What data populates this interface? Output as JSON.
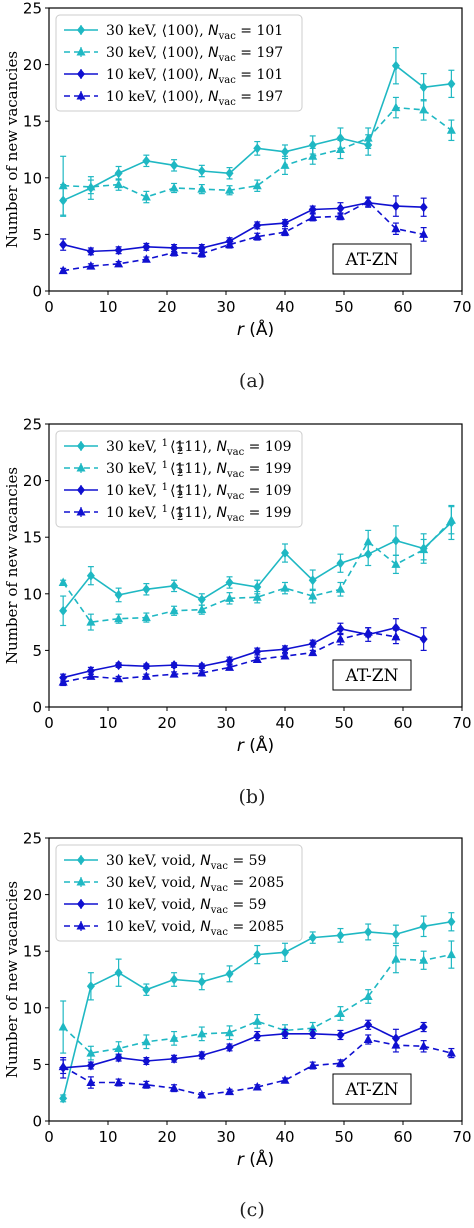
{
  "colors": {
    "cyan": "#1fb8c3",
    "blue": "#1010d0"
  },
  "chart_data": [
    {
      "type": "line",
      "caption": "(a)",
      "annotation": "AT-ZN",
      "xlabel": "r (Å)",
      "ylabel": "Number of new vacancies",
      "xlim": [
        0,
        70
      ],
      "ylim": [
        0,
        25
      ],
      "xticks": [
        0,
        10,
        20,
        30,
        40,
        50,
        60,
        70
      ],
      "yticks": [
        0,
        5,
        10,
        15,
        20,
        25
      ],
      "legend_position": "top-left",
      "series": [
        {
          "energy": "30 keV",
          "defect": "⟨100⟩",
          "nvac_label": "N",
          "nvac_sub": "vac",
          "nvac": "= 101",
          "color": "cyan",
          "dashed": false,
          "marker": "diamond",
          "x": [
            2.4,
            7.1,
            11.8,
            16.5,
            21.2,
            25.9,
            30.6,
            35.3,
            40.0,
            44.7,
            49.4,
            54.1,
            58.8,
            63.5,
            68.2
          ],
          "y": [
            8.0,
            9.1,
            10.4,
            11.5,
            11.1,
            10.6,
            10.4,
            12.6,
            12.3,
            12.9,
            13.5,
            12.9,
            19.9,
            18.0,
            18.3
          ],
          "err": [
            1.4,
            1.0,
            0.6,
            0.5,
            0.5,
            0.5,
            0.5,
            0.6,
            0.6,
            0.8,
            0.9,
            0.9,
            1.6,
            1.2,
            1.2
          ]
        },
        {
          "energy": "30 keV",
          "defect": "⟨100⟩",
          "nvac_label": "N",
          "nvac_sub": "vac",
          "nvac": "= 197",
          "color": "cyan",
          "dashed": true,
          "marker": "tri",
          "x": [
            2.4,
            7.1,
            11.8,
            16.5,
            21.2,
            25.9,
            30.6,
            35.3,
            40.0,
            44.7,
            49.4,
            54.1,
            58.8,
            63.5,
            68.2
          ],
          "y": [
            9.3,
            9.2,
            9.4,
            8.3,
            9.1,
            9.0,
            8.9,
            9.3,
            11.1,
            11.9,
            12.5,
            13.5,
            16.2,
            16.0,
            14.2
          ],
          "err": [
            2.6,
            0.6,
            0.5,
            0.5,
            0.4,
            0.4,
            0.4,
            0.5,
            0.8,
            0.7,
            0.8,
            0.9,
            0.9,
            0.9,
            0.9
          ]
        },
        {
          "energy": "10 keV",
          "defect": "⟨100⟩",
          "nvac_label": "N",
          "nvac_sub": "vac",
          "nvac": "= 101",
          "color": "blue",
          "dashed": false,
          "marker": "diamond",
          "x": [
            2.4,
            7.1,
            11.8,
            16.5,
            21.2,
            25.9,
            30.6,
            35.3,
            40.0,
            44.7,
            49.4,
            54.1,
            58.8,
            63.5
          ],
          "y": [
            4.1,
            3.5,
            3.6,
            3.9,
            3.8,
            3.8,
            4.4,
            5.8,
            6.0,
            7.2,
            7.3,
            7.8,
            7.5,
            7.4
          ],
          "err": [
            0.5,
            0.3,
            0.3,
            0.3,
            0.3,
            0.3,
            0.3,
            0.3,
            0.3,
            0.3,
            0.5,
            0.4,
            0.9,
            0.8
          ]
        },
        {
          "energy": "10 keV",
          "defect": "⟨100⟩",
          "nvac_label": "N",
          "nvac_sub": "vac",
          "nvac": "= 197",
          "color": "blue",
          "dashed": true,
          "marker": "tri",
          "x": [
            2.4,
            7.1,
            11.8,
            16.5,
            21.2,
            25.9,
            30.6,
            35.3,
            40.0,
            44.7,
            49.4,
            54.1,
            58.8,
            63.5
          ],
          "y": [
            1.8,
            2.2,
            2.4,
            2.8,
            3.4,
            3.3,
            4.1,
            4.8,
            5.2,
            6.5,
            6.6,
            7.9,
            5.5,
            5.0
          ],
          "err": [
            0.2,
            0.2,
            0.2,
            0.2,
            0.3,
            0.3,
            0.3,
            0.3,
            0.3,
            0.3,
            0.3,
            0.4,
            0.5,
            0.6
          ]
        }
      ]
    },
    {
      "type": "line",
      "caption": "(b)",
      "annotation": "AT-ZN",
      "xlabel": "r (Å)",
      "ylabel": "Number of new vacancies",
      "xlim": [
        0,
        70
      ],
      "ylim": [
        0,
        25
      ],
      "xticks": [
        0,
        10,
        20,
        30,
        40,
        50,
        60,
        70
      ],
      "yticks": [
        0,
        5,
        10,
        15,
        20,
        25
      ],
      "legend_position": "top-left",
      "series": [
        {
          "energy": "30 keV",
          "defect_frac": [
            "1",
            "2"
          ],
          "defect": "⟨111⟩",
          "nvac_label": "N",
          "nvac_sub": "vac",
          "nvac": "= 109",
          "color": "cyan",
          "dashed": false,
          "marker": "diamond",
          "x": [
            2.4,
            7.1,
            11.8,
            16.5,
            21.2,
            25.9,
            30.6,
            35.3,
            40.0,
            44.7,
            49.4,
            54.1,
            58.8,
            63.5,
            68.2
          ],
          "y": [
            8.5,
            11.6,
            9.9,
            10.4,
            10.7,
            9.5,
            11.0,
            10.6,
            13.6,
            11.2,
            12.7,
            13.5,
            14.7,
            14.0,
            16.3
          ],
          "err": [
            1.3,
            0.8,
            0.6,
            0.5,
            0.5,
            0.5,
            0.5,
            0.6,
            0.8,
            0.9,
            0.8,
            1.0,
            1.3,
            1.3,
            1.5
          ]
        },
        {
          "energy": "30 keV",
          "defect_frac": [
            "1",
            "2"
          ],
          "defect": "⟨111⟩",
          "nvac_label": "N",
          "nvac_sub": "vac",
          "nvac": "= 199",
          "color": "cyan",
          "dashed": true,
          "marker": "tri",
          "x": [
            2.4,
            7.1,
            11.8,
            16.5,
            21.2,
            25.9,
            30.6,
            35.3,
            40.0,
            44.7,
            49.4,
            54.1,
            58.8,
            63.5,
            68.2
          ],
          "y": [
            11.0,
            7.5,
            7.8,
            7.9,
            8.5,
            8.6,
            9.6,
            9.7,
            10.5,
            9.8,
            10.4,
            14.6,
            12.6,
            13.9,
            16.5
          ],
          "err": [
            0.2,
            0.7,
            0.4,
            0.4,
            0.4,
            0.4,
            0.5,
            0.5,
            0.5,
            0.6,
            0.6,
            1.0,
            0.8,
            0.9,
            1.2
          ]
        },
        {
          "energy": "10 keV",
          "defect_frac": [
            "1",
            "2"
          ],
          "defect": "⟨111⟩",
          "nvac_label": "N",
          "nvac_sub": "vac",
          "nvac": "= 109",
          "color": "blue",
          "dashed": false,
          "marker": "diamond",
          "x": [
            2.4,
            7.1,
            11.8,
            16.5,
            21.2,
            25.9,
            30.6,
            35.3,
            40.0,
            44.7,
            49.4,
            54.1,
            58.8,
            63.5
          ],
          "y": [
            2.6,
            3.2,
            3.7,
            3.6,
            3.7,
            3.6,
            4.1,
            4.9,
            5.1,
            5.6,
            6.9,
            6.4,
            7.0,
            6.0
          ],
          "err": [
            0.3,
            0.3,
            0.2,
            0.2,
            0.2,
            0.2,
            0.3,
            0.3,
            0.3,
            0.3,
            0.5,
            0.6,
            0.8,
            1.0
          ]
        },
        {
          "energy": "10 keV",
          "defect_frac": [
            "1",
            "2"
          ],
          "defect": "⟨111⟩",
          "nvac_label": "N",
          "nvac_sub": "vac",
          "nvac": "= 199",
          "color": "blue",
          "dashed": true,
          "marker": "tri",
          "x": [
            2.4,
            7.1,
            11.8,
            16.5,
            21.2,
            25.9,
            30.6,
            35.3,
            40.0,
            44.7,
            49.4,
            54.1,
            58.8
          ],
          "y": [
            2.2,
            2.7,
            2.5,
            2.7,
            2.9,
            3.0,
            3.5,
            4.2,
            4.5,
            4.8,
            6.0,
            6.6,
            6.2
          ],
          "err": [
            0.3,
            0.2,
            0.2,
            0.2,
            0.2,
            0.2,
            0.2,
            0.2,
            0.2,
            0.2,
            0.5,
            0.4,
            0.6
          ]
        }
      ]
    },
    {
      "type": "line",
      "caption": "(c)",
      "annotation": "AT-ZN",
      "xlabel": "r (Å)",
      "ylabel": "Number of new vacancies",
      "xlim": [
        0,
        70
      ],
      "ylim": [
        0,
        25
      ],
      "xticks": [
        0,
        10,
        20,
        30,
        40,
        50,
        60,
        70
      ],
      "yticks": [
        0,
        5,
        10,
        15,
        20,
        25
      ],
      "legend_position": "top-left",
      "series": [
        {
          "energy": "30 keV",
          "defect": "void",
          "nvac_label": "N",
          "nvac_sub": "vac",
          "nvac": "= 59",
          "color": "cyan",
          "dashed": false,
          "marker": "diamond",
          "x": [
            2.4,
            7.1,
            11.8,
            16.5,
            21.2,
            25.9,
            30.6,
            35.3,
            40.0,
            44.7,
            49.4,
            54.1,
            58.8,
            63.5,
            68.2
          ],
          "y": [
            2.0,
            11.9,
            13.1,
            11.6,
            12.5,
            12.3,
            13.0,
            14.7,
            14.9,
            16.2,
            16.4,
            16.7,
            16.5,
            17.2,
            17.6
          ],
          "err": [
            0.3,
            1.2,
            1.2,
            0.5,
            0.6,
            0.7,
            0.7,
            0.8,
            0.8,
            0.5,
            0.6,
            0.7,
            0.8,
            0.9,
            0.8
          ]
        },
        {
          "energy": "30 keV",
          "defect": "void",
          "nvac_label": "N",
          "nvac_sub": "vac",
          "nvac": "= 2085",
          "color": "cyan",
          "dashed": true,
          "marker": "tri",
          "x": [
            2.4,
            7.1,
            11.8,
            16.5,
            21.2,
            25.9,
            30.6,
            35.3,
            40.0,
            44.7,
            49.4,
            54.1,
            58.8,
            63.5,
            68.2
          ],
          "y": [
            8.3,
            6.0,
            6.4,
            7.0,
            7.3,
            7.7,
            7.8,
            8.8,
            8.0,
            8.2,
            9.5,
            11.0,
            14.3,
            14.2,
            14.7
          ],
          "err": [
            2.3,
            0.6,
            0.6,
            0.6,
            0.6,
            0.6,
            0.6,
            0.6,
            0.5,
            0.5,
            0.6,
            0.6,
            1.2,
            0.8,
            1.2
          ]
        },
        {
          "energy": "10 keV",
          "defect": "void",
          "nvac_label": "N",
          "nvac_sub": "vac",
          "nvac": "= 59",
          "color": "blue",
          "dashed": false,
          "marker": "diamond",
          "x": [
            2.4,
            7.1,
            11.8,
            16.5,
            21.2,
            25.9,
            30.6,
            35.3,
            40.0,
            44.7,
            49.4,
            54.1,
            58.8,
            63.5
          ],
          "y": [
            4.7,
            4.9,
            5.6,
            5.3,
            5.5,
            5.8,
            6.5,
            7.5,
            7.7,
            7.7,
            7.6,
            8.5,
            7.3,
            8.3
          ],
          "err": [
            0.9,
            0.3,
            0.3,
            0.3,
            0.3,
            0.3,
            0.3,
            0.4,
            0.4,
            0.4,
            0.4,
            0.4,
            0.8,
            0.4
          ]
        },
        {
          "energy": "10 keV",
          "defect": "void",
          "nvac_label": "N",
          "nvac_sub": "vac",
          "nvac": "= 2085",
          "color": "blue",
          "dashed": true,
          "marker": "tri",
          "x": [
            2.4,
            7.1,
            11.8,
            16.5,
            21.2,
            25.9,
            30.6,
            35.3,
            40.0,
            44.7,
            49.4,
            54.1,
            58.8,
            63.5,
            68.2
          ],
          "y": [
            4.8,
            3.4,
            3.4,
            3.2,
            2.9,
            2.3,
            2.6,
            3.0,
            3.6,
            4.9,
            5.1,
            7.2,
            6.7,
            6.6,
            6.0
          ],
          "err": [
            0.6,
            0.5,
            0.3,
            0.3,
            0.3,
            0.2,
            0.2,
            0.2,
            0.2,
            0.3,
            0.3,
            0.4,
            0.6,
            0.5,
            0.4
          ]
        }
      ]
    }
  ]
}
